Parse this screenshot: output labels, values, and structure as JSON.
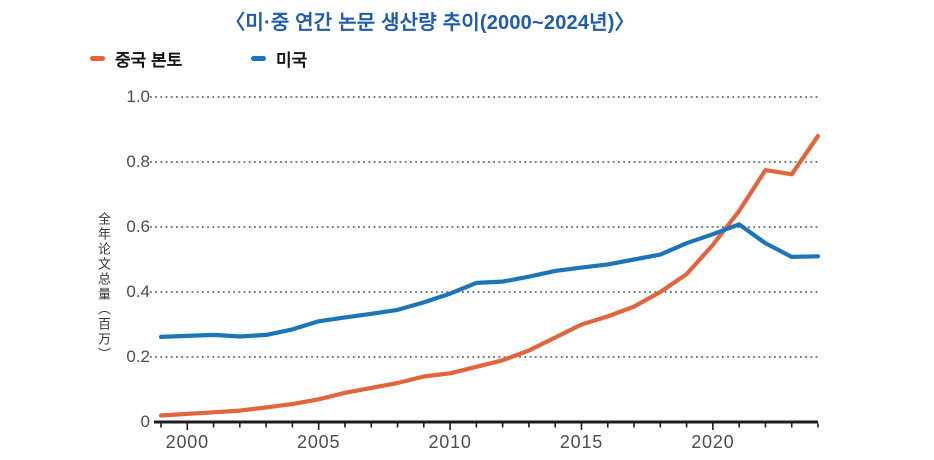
{
  "title": "〈미·중 연간 논문 생산량 추이(2000~2024년)〉",
  "legend": [
    {
      "label": "중국 본토",
      "color": "#e2653e"
    },
    {
      "label": "미국",
      "color": "#1c75b8"
    }
  ],
  "y_axis_title": "全年论文总量（百万）",
  "colors": {
    "title": "#1e5dad",
    "china_line": "#e2653e",
    "usa_line": "#1c75b8",
    "axis": "#1d1d1b",
    "grid": "#6a6a6a",
    "tick_text": "#4d4d4d"
  },
  "chart_data": {
    "type": "line",
    "title": "〈미·중 연간 논문 생산량 추이(2000~2024년)〉",
    "xlabel": "",
    "ylabel": "全年论文总量（百万）",
    "x": [
      1999,
      2000,
      2001,
      2002,
      2003,
      2004,
      2005,
      2006,
      2007,
      2008,
      2009,
      2010,
      2011,
      2012,
      2013,
      2014,
      2015,
      2016,
      2017,
      2018,
      2019,
      2020,
      2021,
      2022,
      2023,
      2024
    ],
    "series": [
      {
        "name": "중국 본토",
        "color": "#e2653e",
        "values": [
          0.02,
          0.025,
          0.03,
          0.035,
          0.045,
          0.055,
          0.07,
          0.09,
          0.105,
          0.12,
          0.14,
          0.15,
          0.17,
          0.19,
          0.22,
          0.26,
          0.3,
          0.325,
          0.355,
          0.4,
          0.455,
          0.545,
          0.65,
          0.775,
          0.762,
          0.88
        ]
      },
      {
        "name": "미국",
        "color": "#1c75b8",
        "values": [
          0.262,
          0.265,
          0.268,
          0.263,
          0.268,
          0.285,
          0.31,
          0.322,
          0.333,
          0.345,
          0.368,
          0.395,
          0.428,
          0.432,
          0.447,
          0.465,
          0.475,
          0.485,
          0.5,
          0.515,
          0.55,
          0.578,
          0.608,
          0.55,
          0.508,
          0.51
        ]
      }
    ],
    "xlim": [
      1999,
      2024
    ],
    "ylim": [
      0,
      1.0
    ],
    "y_ticks": [
      0,
      0.2,
      0.4,
      0.6,
      0.8,
      1.0
    ],
    "y_tick_labels": [
      "0",
      "0.2",
      "0.4",
      "0.6",
      "0.8",
      "1.0"
    ],
    "x_tick_years": [
      2000,
      2005,
      2010,
      2015,
      2020
    ],
    "x_tick_labels": [
      "2000",
      "2005",
      "2010",
      "2015",
      "2020"
    ],
    "minor_x_ticks_every_year": true,
    "grid": "dotted horizontal",
    "legend_position": "top-left"
  }
}
